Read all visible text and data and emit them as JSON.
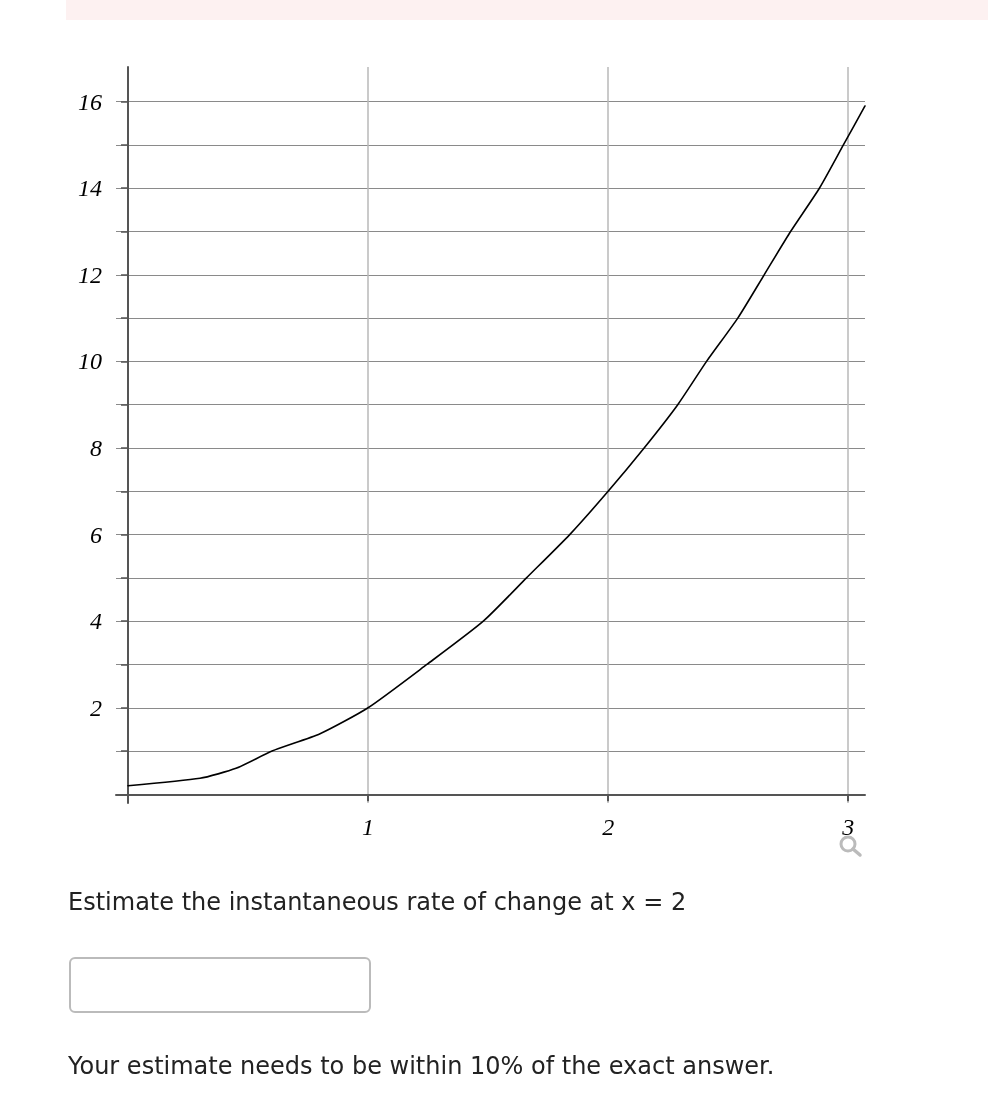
{
  "chart_data": {
    "type": "line",
    "x": [
      0,
      0.3,
      0.45,
      0.6,
      0.8,
      1,
      1.245,
      1.48,
      1.66,
      1.84,
      2,
      2.15,
      2.29,
      2.41,
      2.54,
      2.65,
      2.76,
      2.88,
      2.98,
      3.07
    ],
    "series": [
      {
        "color": "#000000",
        "values": [
          0.2,
          0.37,
          0.6,
          1,
          1.4,
          2,
          3,
          4,
          5,
          6,
          7,
          8,
          9,
          10,
          11,
          12,
          13,
          14,
          15,
          15.9
        ]
      }
    ],
    "xlim": [
      -0.05,
      3.07
    ],
    "ylim": [
      -0.2,
      16.8
    ],
    "xticks": [
      1,
      2,
      3
    ],
    "yticks": [
      {
        "value": 1,
        "label": null
      },
      2,
      {
        "value": 3,
        "label": null
      },
      4,
      {
        "value": 5,
        "label": null
      },
      6,
      {
        "value": 7,
        "label": null
      },
      8,
      {
        "value": 9,
        "label": null
      },
      10,
      {
        "value": 11,
        "label": null
      },
      12,
      {
        "value": 13,
        "label": null
      },
      14,
      {
        "value": 15,
        "label": null
      },
      16
    ],
    "grid": true,
    "marker": "none",
    "line_style": "solid",
    "annotations": [
      "Estimate the instantaneous rate of change at x = 2",
      "Your estimate needs to be within 10% of the exact answer."
    ]
  }
}
